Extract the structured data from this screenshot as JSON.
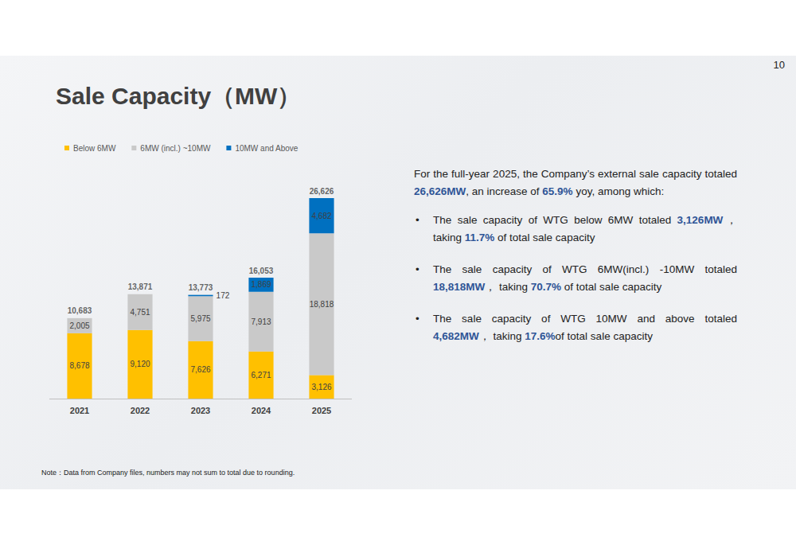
{
  "page": {
    "number": "10",
    "summary": [
      {
        "text": "For the full-year 2025, the Company’s external sale capacity totaled "
      },
      {
        "text": "26,626MW",
        "em": true
      },
      {
        "text": ", an increase of "
      },
      {
        "text": "65.9%",
        "em": true
      },
      {
        "text": " yoy, among which:"
      }
    ],
    "bullets": [
      [
        {
          "text": "The sale capacity of WTG below 6MW totaled "
        },
        {
          "text": "3,126MW",
          "em": true
        },
        {
          "text": "， taking "
        },
        {
          "text": "11.7%",
          "em": true
        },
        {
          "text": " of total sale capacity"
        }
      ],
      [
        {
          "text": "The sale capacity of WTG 6MW(incl.) -10MW totaled "
        },
        {
          "text": "18,818MW",
          "em": true
        },
        {
          "text": "，  taking "
        },
        {
          "text": "70.7%",
          "em": true
        },
        {
          "text": " of total sale capacity"
        }
      ],
      [
        {
          "text": "The sale capacity of WTG 10MW and above totaled "
        },
        {
          "text": "4,682MW",
          "em": true
        },
        {
          "text": "，  taking "
        },
        {
          "text": "17.6%",
          "em": true
        },
        {
          "text": "of total sale capacity"
        }
      ]
    ],
    "note": "Note：Data from Company files, numbers may not sum to total due to rounding."
  },
  "chart_data": {
    "type": "bar",
    "title": "Sale Capacity（MW）",
    "stacked": true,
    "data_labels": true,
    "grid": false,
    "tick_labels": "x",
    "legend": "top-left",
    "categories": [
      "2021",
      "2022",
      "2023",
      "2024",
      "2025"
    ],
    "ylim": [
      0,
      28000
    ],
    "series": [
      {
        "name": "Below 6MW",
        "color": "#ffc000",
        "values": [
          8678,
          9120,
          7626,
          6271,
          3126
        ],
        "value_labels": [
          "8,678",
          "9,120",
          "7,626",
          "6,271",
          "3,126"
        ]
      },
      {
        "name": "6MW (incl.) ~10MW",
        "color": "#c9c9c9",
        "values": [
          2005,
          4751,
          5975,
          7913,
          18818
        ],
        "value_labels": [
          "2,005",
          "4,751",
          "5,975",
          "7,913",
          "18,818"
        ]
      },
      {
        "name": "10MW and Above",
        "color": "#0070c0",
        "values": [
          null,
          null,
          172,
          1869,
          4682
        ],
        "value_labels": [
          null,
          null,
          "172",
          "1,869",
          "4,682"
        ]
      }
    ],
    "totals": [
      10683,
      13871,
      13773,
      16053,
      26626
    ],
    "total_labels": [
      "10,683",
      "13,871",
      "13,773",
      "16,053",
      "26,626"
    ]
  }
}
